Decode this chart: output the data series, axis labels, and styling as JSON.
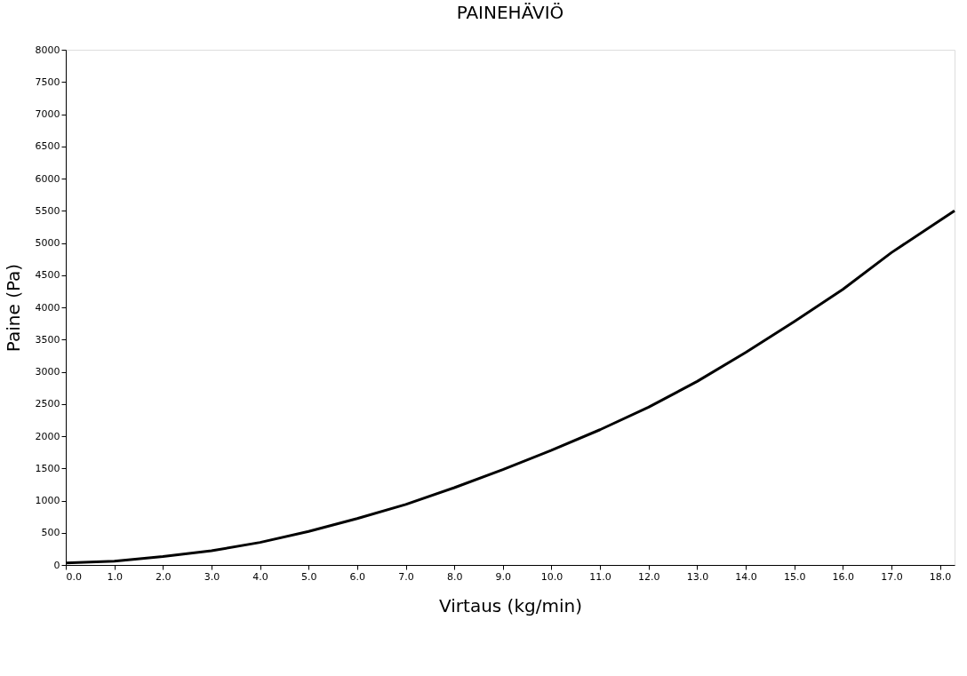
{
  "chart_data": {
    "type": "line",
    "title": "PAINEHÄVIÖ",
    "xlabel": "Virtaus (kg/min)",
    "ylabel": "Paine (Pa)",
    "x": [
      0,
      1,
      2,
      3,
      4,
      5,
      6,
      7,
      8,
      9,
      10,
      11,
      12,
      13,
      14,
      15,
      16,
      17,
      18.3
    ],
    "series": [
      {
        "color": "#000000",
        "values": [
          30,
          60,
          130,
          220,
          350,
          520,
          720,
          940,
          1200,
          1480,
          1780,
          2100,
          2450,
          2850,
          3300,
          3780,
          4280,
          4850,
          5500
        ]
      }
    ],
    "xlim": [
      0,
      18.3
    ],
    "xticks": [
      {
        "value": 0,
        "label": "0.0"
      },
      {
        "value": 1,
        "label": "1.0"
      },
      {
        "value": 2,
        "label": "2.0"
      },
      {
        "value": 3,
        "label": "3.0"
      },
      {
        "value": 4,
        "label": "4.0"
      },
      {
        "value": 5,
        "label": "5.0"
      },
      {
        "value": 6,
        "label": "6.0"
      },
      {
        "value": 7,
        "label": "7.0"
      },
      {
        "value": 8,
        "label": "8.0"
      },
      {
        "value": 9,
        "label": "9.0"
      },
      {
        "value": 10,
        "label": "10.0"
      },
      {
        "value": 11,
        "label": "11.0"
      },
      {
        "value": 12,
        "label": "12.0"
      },
      {
        "value": 13,
        "label": "13.0"
      },
      {
        "value": 14,
        "label": "14.0"
      },
      {
        "value": 15,
        "label": "15.0"
      },
      {
        "value": 16,
        "label": "16.0"
      },
      {
        "value": 17,
        "label": "17.0"
      },
      {
        "value": 18,
        "label": "18.0"
      }
    ],
    "ylim": [
      0,
      8000
    ],
    "yticks": [
      0,
      500,
      1000,
      1500,
      2000,
      2500,
      3000,
      3500,
      4000,
      4500,
      5000,
      5500,
      6000,
      6500,
      7000,
      7500,
      8000
    ],
    "grid": false,
    "legend": false,
    "marker": "none",
    "line_style": "solid"
  }
}
